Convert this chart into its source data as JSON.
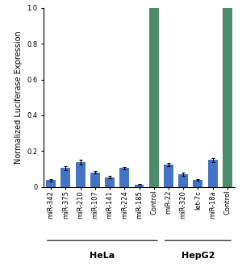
{
  "categories": [
    "miR-342",
    "miR-375",
    "miR-210",
    "miR-107",
    "miR-141",
    "miR-224",
    "miR-185",
    "Control",
    "miR-22",
    "miR-320",
    "let-7c",
    "miR-18a",
    "Control"
  ],
  "values": [
    0.037,
    0.105,
    0.138,
    0.082,
    0.055,
    0.105,
    0.013,
    1.0,
    0.125,
    0.072,
    0.04,
    0.15,
    1.0
  ],
  "errors": [
    0.005,
    0.01,
    0.012,
    0.008,
    0.006,
    0.008,
    0.003,
    0.0,
    0.01,
    0.008,
    0.005,
    0.01,
    0.0
  ],
  "bar_colors": [
    "#4472C4",
    "#4472C4",
    "#4472C4",
    "#4472C4",
    "#4472C4",
    "#4472C4",
    "#4472C4",
    "#4E8B6E",
    "#4472C4",
    "#4472C4",
    "#4472C4",
    "#4472C4",
    "#4E8B6E"
  ],
  "group_labels": [
    "HeLa",
    "HepG2"
  ],
  "ylabel": "Normalized Luciferase Expression",
  "ylim": [
    0,
    1.0
  ],
  "yticks": [
    0,
    0.2,
    0.4,
    0.6,
    0.8,
    1.0
  ],
  "bar_width": 0.65,
  "blue_color": "#4472C4",
  "green_color": "#4E8B6E",
  "axis_fontsize": 7,
  "tick_fontsize": 6,
  "group_label_fontsize": 8,
  "xtick_fontsize": 6
}
